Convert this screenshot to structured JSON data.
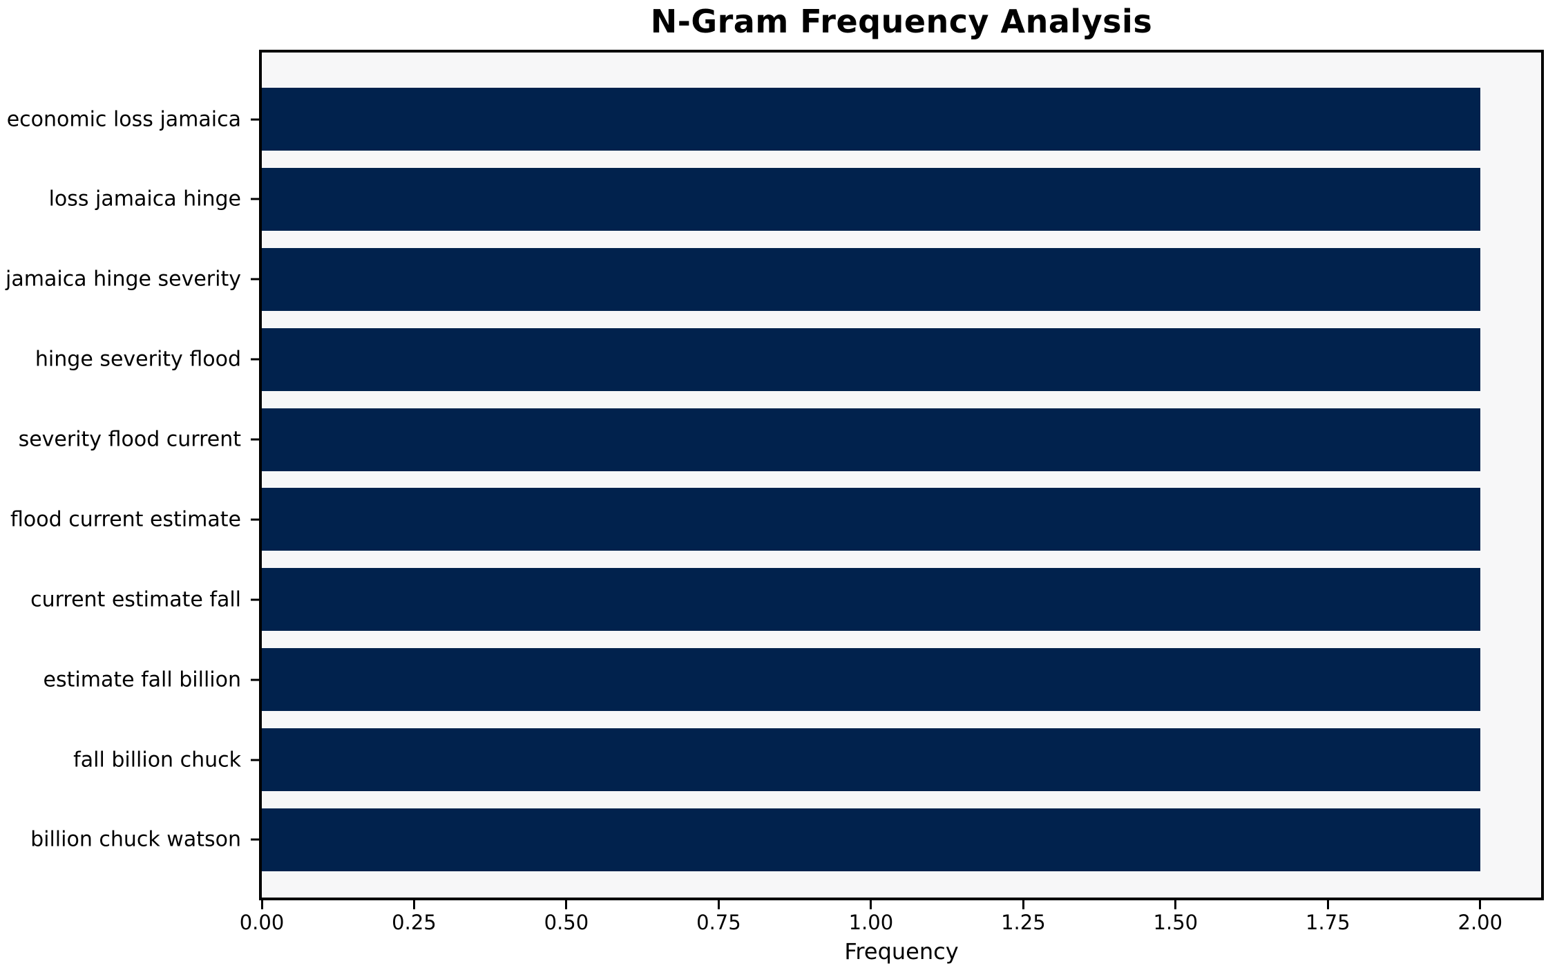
{
  "chart_data": {
    "type": "bar",
    "orientation": "horizontal",
    "title": "N-Gram Frequency Analysis",
    "xlabel": "Frequency",
    "categories": [
      "economic loss jamaica",
      "loss jamaica hinge",
      "jamaica hinge severity",
      "hinge severity flood",
      "severity flood current",
      "flood current estimate",
      "current estimate fall",
      "estimate fall billion",
      "fall billion chuck",
      "billion chuck watson"
    ],
    "values": [
      2,
      2,
      2,
      2,
      2,
      2,
      2,
      2,
      2,
      2
    ],
    "xticks": {
      "values": [
        0,
        0.25,
        0.5,
        0.75,
        1.0,
        1.25,
        1.5,
        1.75,
        2.0
      ],
      "labels": [
        "0.00",
        "0.25",
        "0.50",
        "0.75",
        "1.00",
        "1.25",
        "1.50",
        "1.75",
        "2.00"
      ]
    },
    "xlim": [
      0,
      2.1
    ],
    "grid": false,
    "legend": null,
    "colors": {
      "bar": "#01224d",
      "plot_bg": "#f7f7f8",
      "figure_bg": "#ffffff",
      "axis": "#000000",
      "text": "#000000"
    }
  }
}
